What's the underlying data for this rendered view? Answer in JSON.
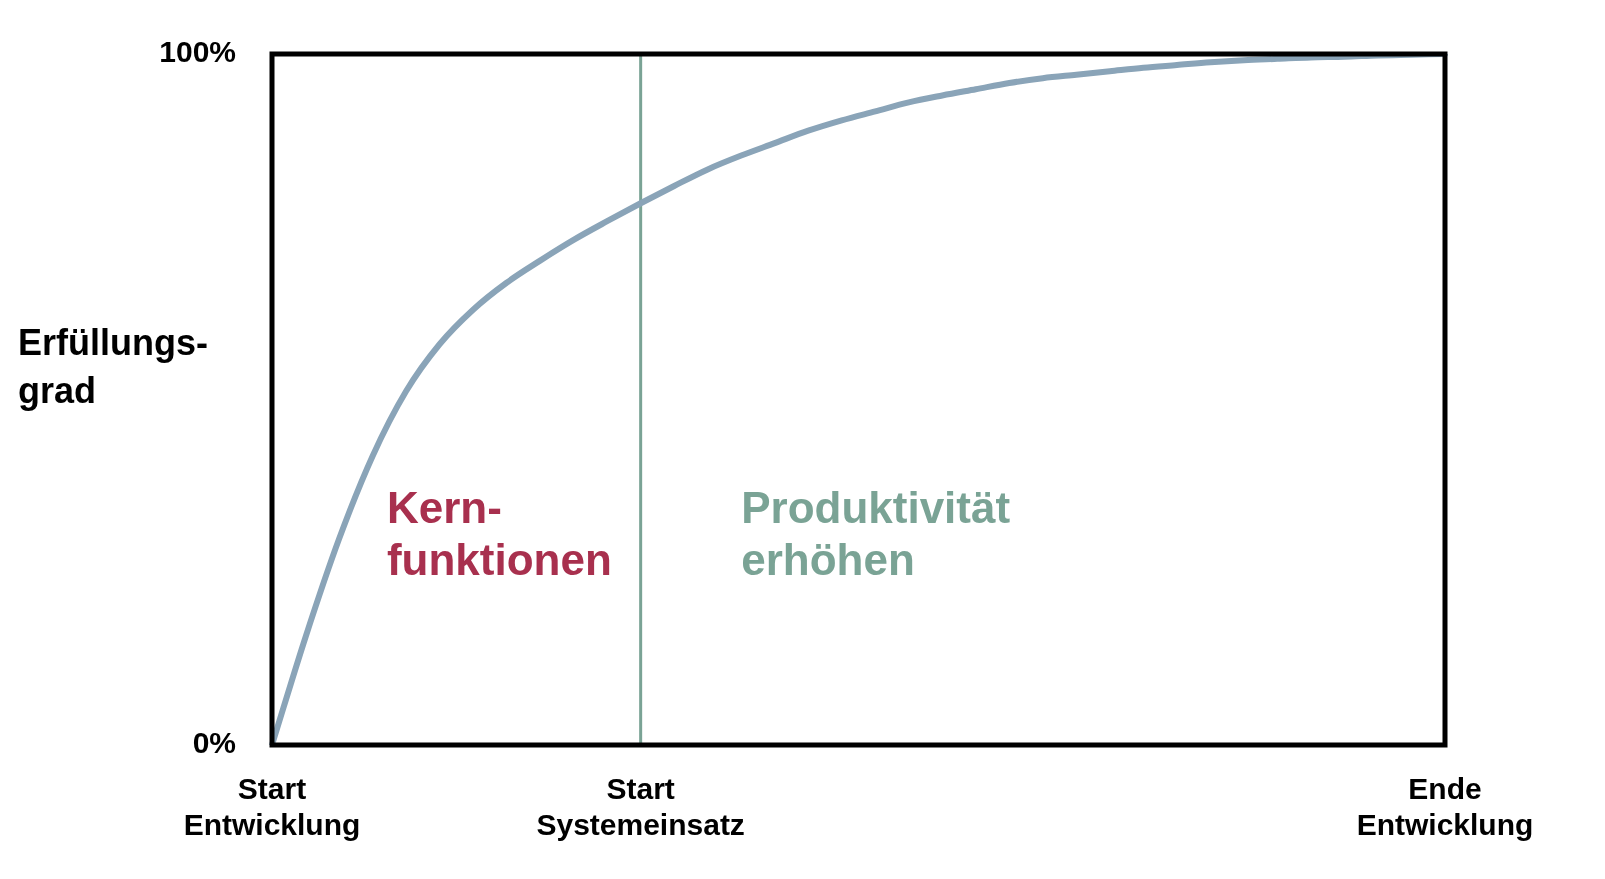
{
  "chart_data": {
    "type": "line",
    "ylabel": "Erfüllungs-\ngrad",
    "categories": [
      "Start\nEntwicklung",
      null,
      null,
      null,
      null,
      null,
      null,
      null,
      null,
      null,
      null,
      "Start\nSystemeinsatz",
      null,
      null,
      null,
      null,
      null,
      null,
      null,
      null,
      null,
      null,
      null,
      null,
      null,
      null,
      null,
      null,
      null,
      null,
      null,
      null,
      null,
      null,
      null,
      "Ende\nEntwicklung"
    ],
    "series": [
      {
        "color": "#8aa4b8",
        "values": [
          0,
          15.6,
          29.8,
          41.8,
          51.2,
          58.0,
          63.0,
          66.9,
          70.1,
          73.1,
          75.8,
          78.4,
          80.9,
          83.3,
          85.3,
          87.1,
          88.9,
          90.4,
          91.7,
          93.0,
          94.0,
          94.9,
          95.8,
          96.5,
          97.0,
          97.5,
          98.0,
          98.4,
          98.8,
          99.1,
          99.3,
          99.5,
          99.6,
          99.8,
          99.9,
          100
        ]
      }
    ],
    "ylim": [
      0,
      100
    ],
    "yticks": [
      {
        "value": 0,
        "label": "0%"
      },
      {
        "value": 100,
        "label": "100%"
      }
    ],
    "ref_lines": [
      {
        "axis": "x",
        "value": "Start\nSystemeinsatz",
        "label": null,
        "color": "#7aa395"
      }
    ],
    "annotations": [
      "Kern-\nfunktionen",
      "Produktivität\nerhöhen"
    ],
    "grid": false,
    "legend": false,
    "marker": "none",
    "line_style": "solid"
  }
}
